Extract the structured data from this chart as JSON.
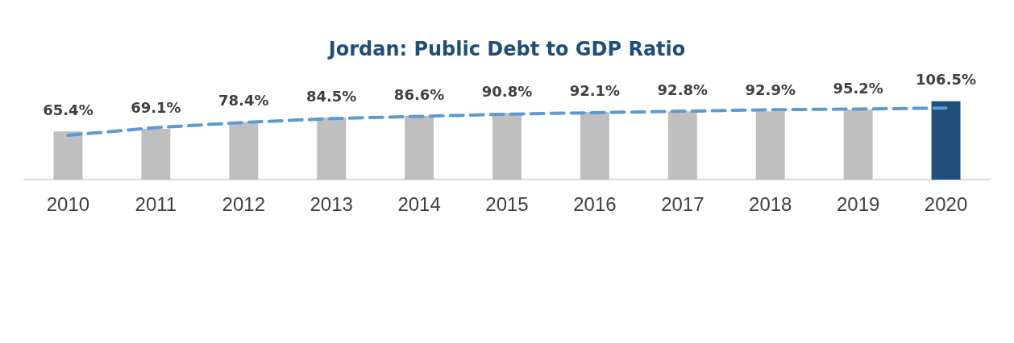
{
  "chart_data": {
    "type": "bar",
    "title": "Jordan: Public Debt to GDP Ratio",
    "categories": [
      "2010",
      "2011",
      "2012",
      "2013",
      "2014",
      "2015",
      "2016",
      "2017",
      "2018",
      "2019",
      "2020"
    ],
    "series": [
      {
        "colors": [
          "#bfbfbf",
          "#bfbfbf",
          "#bfbfbf",
          "#bfbfbf",
          "#bfbfbf",
          "#bfbfbf",
          "#bfbfbf",
          "#bfbfbf",
          "#bfbfbf",
          "#bfbfbf",
          "#1f4e79"
        ],
        "values": [
          65.4,
          69.1,
          78.4,
          84.5,
          86.6,
          90.8,
          92.1,
          92.8,
          92.9,
          95.2,
          106.5
        ],
        "value_labels": [
          "65.4%",
          "69.1%",
          "78.4%",
          "84.5%",
          "86.6%",
          "90.8%",
          "92.1%",
          "92.8%",
          "92.9%",
          "95.2%",
          "106.5%"
        ]
      },
      {
        "type": "line",
        "color": "#5b9bd5",
        "line_style": "dashed",
        "marker": "none",
        "values": [
          60.4,
          70.7,
          77.8,
          83,
          86,
          89,
          91,
          93,
          95,
          96,
          97.3
        ]
      }
    ],
    "grid": false,
    "legend": false
  }
}
